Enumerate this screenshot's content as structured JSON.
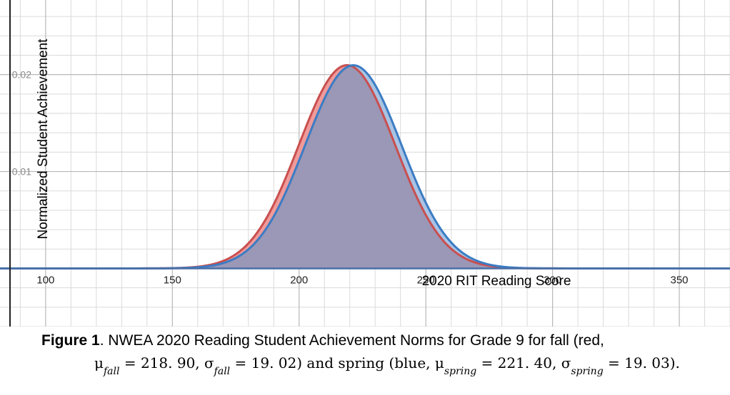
{
  "chart_data": {
    "type": "area",
    "xlabel": "2020 RIT Reading Score",
    "ylabel": "Normalized Student Achievement",
    "xlim": [
      82,
      370
    ],
    "ylim": [
      -0.006,
      0.0277
    ],
    "x_ticks": [
      100,
      150,
      200,
      250,
      300,
      350
    ],
    "x_tick_labels": [
      "100",
      "150",
      "200",
      "250",
      "300",
      "350"
    ],
    "y_ticks": [
      0.01,
      0.02
    ],
    "y_tick_labels": [
      "0.01",
      "0.02"
    ],
    "grid": true,
    "series": [
      {
        "distribution": "normal",
        "mean": 218.9,
        "sd": 19.02,
        "color": "#c94f4f",
        "fill": "#f09a9a"
      },
      {
        "distribution": "normal",
        "mean": 221.4,
        "sd": 19.03,
        "color": "#3b7cc4",
        "fill": "#a9c3e3"
      }
    ],
    "overlap_fill": "#9b97b6"
  },
  "caption": {
    "label": "Figure 1",
    "text_line1": ".  NWEA 2020 Reading Student Achievement Norms  for Grade 9 for fall (red,",
    "mu": "μ",
    "sigma": "σ",
    "sub_fall": "fall",
    "sub_spring": "spring",
    "eq_mu_fall": " =  218. 90, ",
    "eq_sigma_fall": " =  19. 02) and spring (blue, ",
    "eq_mu_spring": " =  221. 40, ",
    "eq_sigma_spring": " =  19. 03)."
  }
}
